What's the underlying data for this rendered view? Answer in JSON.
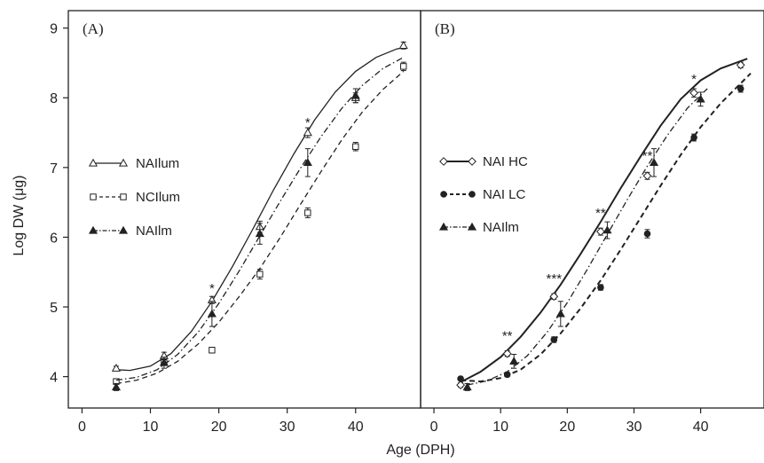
{
  "ylabel": "Log DW (μg)",
  "xlabel": "Age (DPH)",
  "chart_data": [
    {
      "type": "line",
      "panel_label": "(A)",
      "xlabel": "Age (DPH)",
      "ylabel": "Log DW (μg)",
      "xlim": [
        -2,
        49.5
      ],
      "ylim": [
        3.55,
        9.25
      ],
      "xticks": [
        0,
        10,
        20,
        30,
        40
      ],
      "yticks": [
        4,
        5,
        6,
        7,
        8,
        9
      ],
      "legend_position": "left",
      "series": [
        {
          "name": "NAIlum",
          "marker": "open-triangle",
          "line": "solid",
          "color": "#222222",
          "points": [
            {
              "x": 5,
              "y": 4.12,
              "err": 0.03
            },
            {
              "x": 12,
              "y": 4.3,
              "err": 0.05
            },
            {
              "x": 19,
              "y": 5.1,
              "err": 0.05
            },
            {
              "x": 26,
              "y": 6.15,
              "err": 0.08
            },
            {
              "x": 33,
              "y": 7.5,
              "err": 0.07
            },
            {
              "x": 40,
              "y": 8.0,
              "err": 0.07
            },
            {
              "x": 47,
              "y": 8.75,
              "err": 0.05
            }
          ],
          "fit": [
            {
              "x": 5,
              "y": 4.1
            },
            {
              "x": 7,
              "y": 4.09
            },
            {
              "x": 10,
              "y": 4.15
            },
            {
              "x": 13,
              "y": 4.33
            },
            {
              "x": 16,
              "y": 4.65
            },
            {
              "x": 19,
              "y": 5.08
            },
            {
              "x": 22,
              "y": 5.58
            },
            {
              "x": 25,
              "y": 6.12
            },
            {
              "x": 28,
              "y": 6.68
            },
            {
              "x": 31,
              "y": 7.2
            },
            {
              "x": 34,
              "y": 7.68
            },
            {
              "x": 37,
              "y": 8.08
            },
            {
              "x": 40,
              "y": 8.38
            },
            {
              "x": 43,
              "y": 8.58
            },
            {
              "x": 46,
              "y": 8.7
            },
            {
              "x": 47,
              "y": 8.72
            }
          ]
        },
        {
          "name": "NCIlum",
          "marker": "open-square",
          "line": "dashed",
          "color": "#222222",
          "points": [
            {
              "x": 5,
              "y": 3.93,
              "err": 0.03
            },
            {
              "x": 12,
              "y": 4.2,
              "err": 0.04
            },
            {
              "x": 19,
              "y": 4.38,
              "err": 0.04
            },
            {
              "x": 26,
              "y": 5.47,
              "err": 0.07
            },
            {
              "x": 33,
              "y": 6.35,
              "err": 0.07
            },
            {
              "x": 40,
              "y": 7.3,
              "err": 0.06
            },
            {
              "x": 47,
              "y": 8.45,
              "err": 0.06
            }
          ],
          "fit": [
            {
              "x": 5,
              "y": 3.9
            },
            {
              "x": 8,
              "y": 3.95
            },
            {
              "x": 11,
              "y": 4.05
            },
            {
              "x": 14,
              "y": 4.22
            },
            {
              "x": 17,
              "y": 4.47
            },
            {
              "x": 20,
              "y": 4.78
            },
            {
              "x": 23,
              "y": 5.15
            },
            {
              "x": 26,
              "y": 5.55
            },
            {
              "x": 29,
              "y": 6.0
            },
            {
              "x": 32,
              "y": 6.48
            },
            {
              "x": 35,
              "y": 6.95
            },
            {
              "x": 38,
              "y": 7.4
            },
            {
              "x": 41,
              "y": 7.8
            },
            {
              "x": 44,
              "y": 8.12
            },
            {
              "x": 47,
              "y": 8.38
            }
          ]
        },
        {
          "name": "NAIlm",
          "marker": "filled-triangle",
          "line": "dash-dot",
          "color": "#222222",
          "points": [
            {
              "x": 5,
              "y": 3.85,
              "err": 0.05
            },
            {
              "x": 12,
              "y": 4.2,
              "err": 0.08
            },
            {
              "x": 19,
              "y": 4.9,
              "err": 0.18
            },
            {
              "x": 26,
              "y": 6.05,
              "err": 0.15
            },
            {
              "x": 33,
              "y": 7.07,
              "err": 0.2
            },
            {
              "x": 40,
              "y": 8.03,
              "err": 0.1
            }
          ],
          "fit": [
            {
              "x": 5,
              "y": 3.95
            },
            {
              "x": 8,
              "y": 3.99
            },
            {
              "x": 11,
              "y": 4.1
            },
            {
              "x": 14,
              "y": 4.32
            },
            {
              "x": 17,
              "y": 4.64
            },
            {
              "x": 20,
              "y": 5.05
            },
            {
              "x": 23,
              "y": 5.52
            },
            {
              "x": 26,
              "y": 6.02
            },
            {
              "x": 29,
              "y": 6.52
            },
            {
              "x": 32,
              "y": 7.0
            },
            {
              "x": 35,
              "y": 7.45
            },
            {
              "x": 38,
              "y": 7.85
            },
            {
              "x": 41,
              "y": 8.18
            },
            {
              "x": 44,
              "y": 8.42
            },
            {
              "x": 47,
              "y": 8.58
            }
          ]
        }
      ],
      "annotations": [
        {
          "text": "*",
          "x": 19,
          "y": 5.28
        },
        {
          "text": "*",
          "x": 33,
          "y": 7.66
        }
      ]
    },
    {
      "type": "line",
      "panel_label": "(B)",
      "xlabel": "Age (DPH)",
      "ylabel": "",
      "xlim": [
        -2,
        49.5
      ],
      "ylim": [
        3.55,
        9.25
      ],
      "xticks": [
        0,
        10,
        20,
        30,
        40
      ],
      "yticks": [],
      "legend_position": "left",
      "series": [
        {
          "name": "NAI HC",
          "marker": "open-diamond",
          "line": "solid-thick",
          "color": "#222222",
          "points": [
            {
              "x": 4,
              "y": 3.88,
              "err": 0.03
            },
            {
              "x": 11,
              "y": 4.33,
              "err": 0.04
            },
            {
              "x": 18,
              "y": 5.15,
              "err": 0.04
            },
            {
              "x": 25,
              "y": 6.08,
              "err": 0.05
            },
            {
              "x": 32,
              "y": 6.88,
              "err": 0.05
            },
            {
              "x": 39,
              "y": 8.07,
              "err": 0.06
            },
            {
              "x": 46,
              "y": 8.47,
              "err": 0.04
            }
          ],
          "fit": [
            {
              "x": 4,
              "y": 3.92
            },
            {
              "x": 7,
              "y": 4.07
            },
            {
              "x": 10,
              "y": 4.28
            },
            {
              "x": 13,
              "y": 4.57
            },
            {
              "x": 16,
              "y": 4.92
            },
            {
              "x": 19,
              "y": 5.32
            },
            {
              "x": 22,
              "y": 5.76
            },
            {
              "x": 25,
              "y": 6.22
            },
            {
              "x": 28,
              "y": 6.7
            },
            {
              "x": 31,
              "y": 7.16
            },
            {
              "x": 34,
              "y": 7.6
            },
            {
              "x": 37,
              "y": 7.98
            },
            {
              "x": 40,
              "y": 8.25
            },
            {
              "x": 43,
              "y": 8.42
            },
            {
              "x": 47,
              "y": 8.56
            }
          ]
        },
        {
          "name": "NAI LC",
          "marker": "filled-circle",
          "line": "dashed-thick",
          "color": "#222222",
          "points": [
            {
              "x": 4,
              "y": 3.97,
              "err": 0.02
            },
            {
              "x": 11,
              "y": 4.03,
              "err": 0.03
            },
            {
              "x": 18,
              "y": 4.53,
              "err": 0.04
            },
            {
              "x": 25,
              "y": 5.28,
              "err": 0.04
            },
            {
              "x": 32,
              "y": 6.05,
              "err": 0.06
            },
            {
              "x": 39,
              "y": 7.43,
              "err": 0.05
            },
            {
              "x": 46,
              "y": 8.13,
              "err": 0.05
            }
          ],
          "fit": [
            {
              "x": 4,
              "y": 3.95
            },
            {
              "x": 7,
              "y": 3.93
            },
            {
              "x": 10,
              "y": 3.98
            },
            {
              "x": 13,
              "y": 4.1
            },
            {
              "x": 16,
              "y": 4.32
            },
            {
              "x": 19,
              "y": 4.62
            },
            {
              "x": 22,
              "y": 4.98
            },
            {
              "x": 25,
              "y": 5.38
            },
            {
              "x": 28,
              "y": 5.82
            },
            {
              "x": 31,
              "y": 6.28
            },
            {
              "x": 34,
              "y": 6.74
            },
            {
              "x": 37,
              "y": 7.18
            },
            {
              "x": 40,
              "y": 7.58
            },
            {
              "x": 43,
              "y": 7.92
            },
            {
              "x": 47.5,
              "y": 8.35
            }
          ]
        },
        {
          "name": "NAIlm",
          "marker": "filled-triangle",
          "line": "dash-dot",
          "color": "#222222",
          "points": [
            {
              "x": 5,
              "y": 3.85,
              "err": 0.05
            },
            {
              "x": 12,
              "y": 4.22,
              "err": 0.1
            },
            {
              "x": 19,
              "y": 4.9,
              "err": 0.18
            },
            {
              "x": 26,
              "y": 6.1,
              "err": 0.12
            },
            {
              "x": 33,
              "y": 7.07,
              "err": 0.2
            },
            {
              "x": 40,
              "y": 7.98,
              "err": 0.1
            }
          ],
          "fit": [
            {
              "x": 5,
              "y": 3.88
            },
            {
              "x": 8,
              "y": 3.94
            },
            {
              "x": 11,
              "y": 4.07
            },
            {
              "x": 14,
              "y": 4.3
            },
            {
              "x": 17,
              "y": 4.64
            },
            {
              "x": 20,
              "y": 5.06
            },
            {
              "x": 23,
              "y": 5.54
            },
            {
              "x": 26,
              "y": 6.04
            },
            {
              "x": 29,
              "y": 6.54
            },
            {
              "x": 32,
              "y": 7.02
            },
            {
              "x": 35,
              "y": 7.46
            },
            {
              "x": 38,
              "y": 7.85
            },
            {
              "x": 41,
              "y": 8.13
            }
          ]
        }
      ],
      "annotations": [
        {
          "text": "**",
          "x": 11,
          "y": 4.6
        },
        {
          "text": "***",
          "x": 18,
          "y": 5.42
        },
        {
          "text": "**",
          "x": 25,
          "y": 6.36
        },
        {
          "text": "**",
          "x": 32,
          "y": 7.18
        },
        {
          "text": "*",
          "x": 39,
          "y": 8.28
        }
      ]
    }
  ]
}
